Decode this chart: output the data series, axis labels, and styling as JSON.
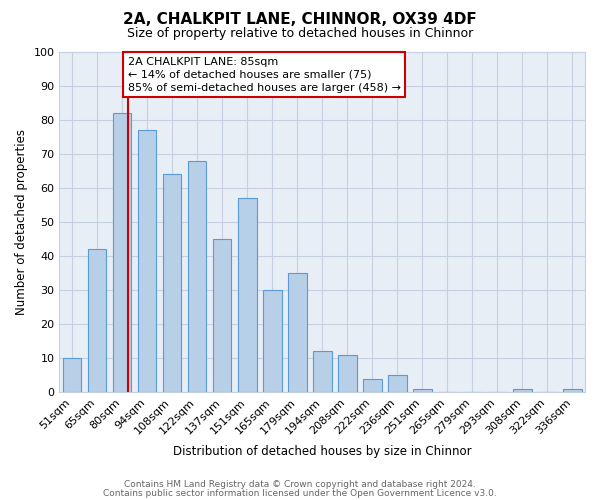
{
  "title": "2A, CHALKPIT LANE, CHINNOR, OX39 4DF",
  "subtitle": "Size of property relative to detached houses in Chinnor",
  "xlabel": "Distribution of detached houses by size in Chinnor",
  "ylabel": "Number of detached properties",
  "footer_line1": "Contains HM Land Registry data © Crown copyright and database right 2024.",
  "footer_line2": "Contains public sector information licensed under the Open Government Licence v3.0.",
  "bin_labels": [
    "51sqm",
    "65sqm",
    "80sqm",
    "94sqm",
    "108sqm",
    "122sqm",
    "137sqm",
    "151sqm",
    "165sqm",
    "179sqm",
    "194sqm",
    "208sqm",
    "222sqm",
    "236sqm",
    "251sqm",
    "265sqm",
    "279sqm",
    "293sqm",
    "308sqm",
    "322sqm",
    "336sqm"
  ],
  "bar_values": [
    10,
    42,
    82,
    77,
    64,
    68,
    45,
    57,
    30,
    35,
    12,
    11,
    4,
    5,
    1,
    0,
    0,
    0,
    1,
    0,
    1
  ],
  "bar_color": "#b8cfe8",
  "bar_edge_color": "#5b9bd5",
  "bar_width": 0.75,
  "vline_x_index": 2,
  "vline_color": "#cc0000",
  "ylim": [
    0,
    100
  ],
  "yticks": [
    0,
    10,
    20,
    30,
    40,
    50,
    60,
    70,
    80,
    90,
    100
  ],
  "annotation_title": "2A CHALKPIT LANE: 85sqm",
  "annotation_line1": "← 14% of detached houses are smaller (75)",
  "annotation_line2": "85% of semi-detached houses are larger (458) →",
  "background_color": "#ffffff",
  "plot_bg_color": "#e8eef5",
  "grid_color": "#c5d0e0"
}
